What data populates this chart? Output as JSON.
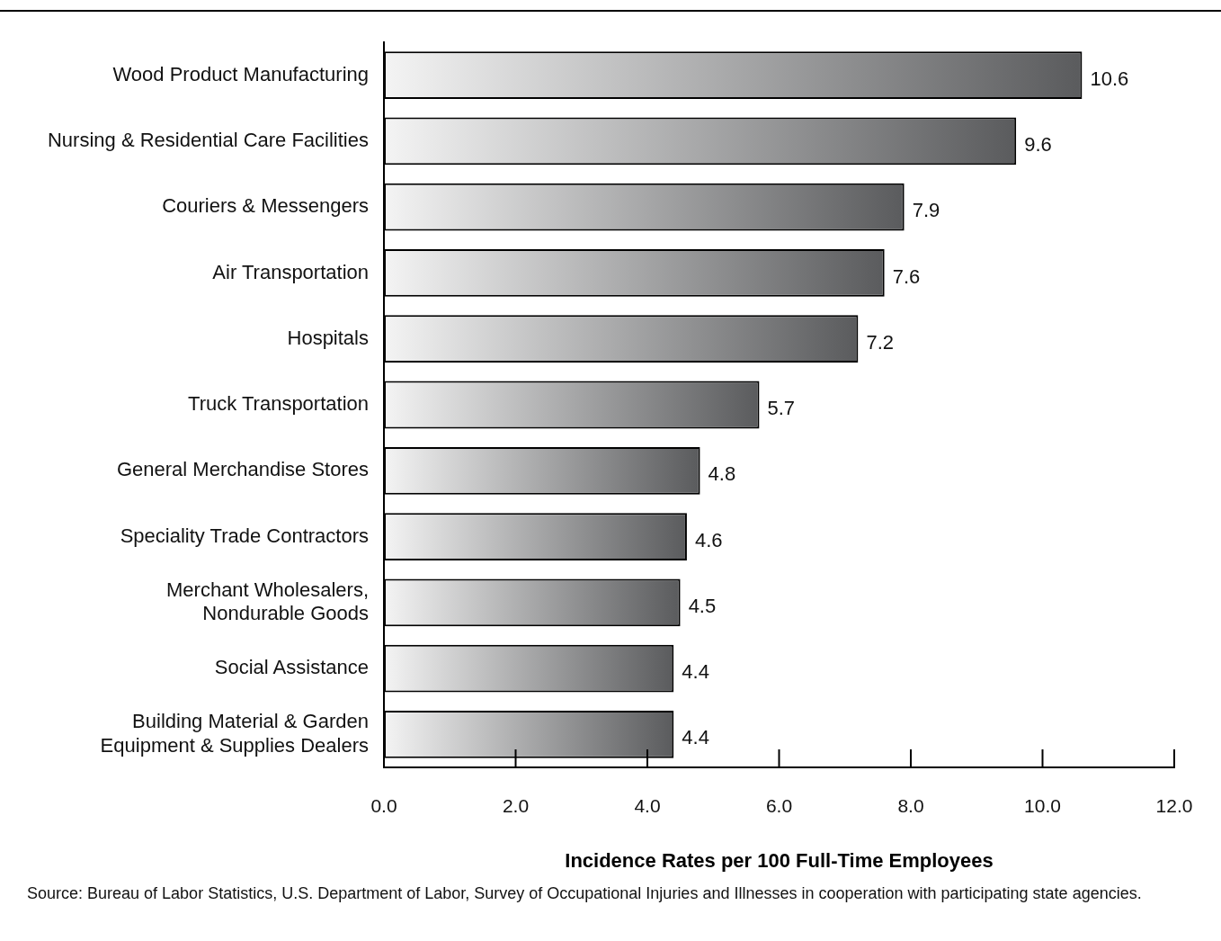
{
  "chart_data": {
    "type": "bar",
    "orientation": "horizontal",
    "xlabel": "Incidence Rates per 100 Full-Time Employees",
    "categories": [
      "Wood Product Manufacturing",
      "Nursing & Residential Care Facilities",
      "Couriers & Messengers",
      "Air Transportation",
      "Hospitals",
      "Truck Transportation",
      "General Merchandise Stores",
      "Speciality Trade Contractors",
      "Merchant Wholesalers,\nNondurable Goods",
      "Social Assistance",
      "Building Material & Garden\nEquipment & Supplies Dealers"
    ],
    "values": [
      10.6,
      9.6,
      7.9,
      7.6,
      7.2,
      5.7,
      4.8,
      4.6,
      4.5,
      4.4,
      4.4
    ],
    "color": "#5a5b5d",
    "data_labels": true,
    "xlim": [
      0,
      12
    ],
    "xticks": [
      {
        "value": 0,
        "label": "0.0"
      },
      {
        "value": 2,
        "label": "2.0"
      },
      {
        "value": 4,
        "label": "4.0"
      },
      {
        "value": 6,
        "label": "6.0"
      },
      {
        "value": 8,
        "label": "8.0"
      },
      {
        "value": 10,
        "label": "10.0"
      },
      {
        "value": 12,
        "label": "12.0"
      }
    ],
    "annotations": [
      "Source: Bureau of Labor Statistics, U.S. Department of Labor, Survey of Occupational Injuries and Illnesses in cooperation with participating state agencies."
    ]
  }
}
